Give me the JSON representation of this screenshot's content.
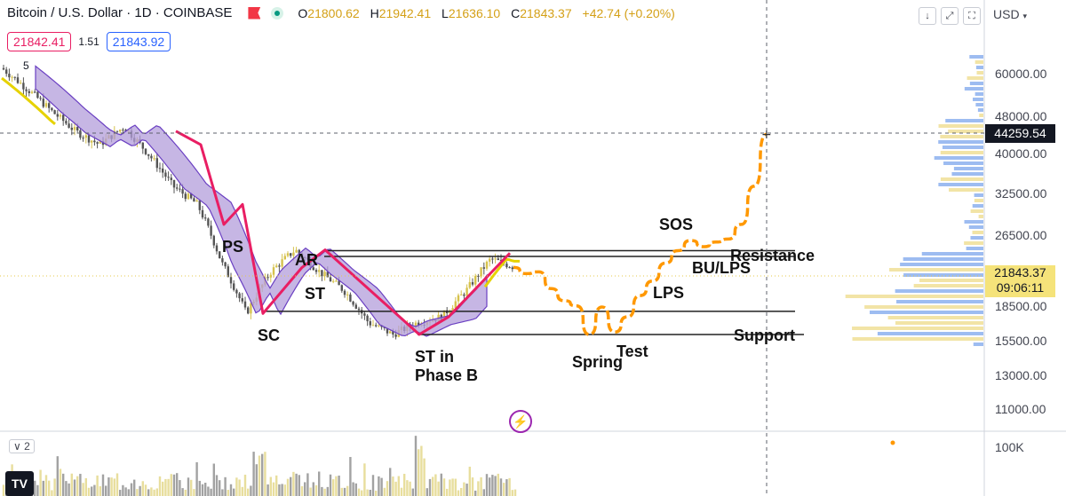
{
  "header": {
    "symbol": "Bitcoin / U.S. Dollar · 1D · COINBASE",
    "ohlc": [
      {
        "k": "O",
        "v": "21800.62"
      },
      {
        "k": "H",
        "v": "21942.41"
      },
      {
        "k": "L",
        "v": "21636.10"
      },
      {
        "k": "C",
        "v": "21843.37"
      }
    ],
    "change": "+42.74 (+0.20%)",
    "bid": "21842.41",
    "spread": "1.51",
    "ask": "21843.92",
    "currency": "USD",
    "indicator_count": "5"
  },
  "toolbar": {
    "down_icon": "↓",
    "expand_icon": "⤢",
    "fullscreen_icon": "⛶"
  },
  "price_axis": {
    "ticks": [
      "60000.00",
      "48000.00",
      "40000.00",
      "32500.00",
      "26500.00",
      "18500.00",
      "15500.00",
      "13000.00",
      "11000.00"
    ],
    "crosshair_price": "44259.54",
    "last_price": "21843.37",
    "countdown": "09:06:11"
  },
  "volume_pane": {
    "label": "2",
    "axis_tick": "100K"
  },
  "chart_data": {
    "type": "line",
    "wyckoff_labels": [
      "PS",
      "SC",
      "AR",
      "ST",
      "ST in Phase B",
      "Spring",
      "Test",
      "LPS",
      "SOS",
      "BU/LPS",
      "Resistance",
      "Support"
    ],
    "levels": {
      "resistance": [
        24500,
        23800
      ],
      "support": [
        18000,
        16000
      ]
    },
    "price_history": [
      62000,
      56000,
      50000,
      45000,
      42000,
      46000,
      40000,
      34000,
      31000,
      23000,
      17800,
      22000,
      24600,
      22000,
      20000,
      17000,
      16000,
      17000,
      17500,
      20000,
      23500,
      22500
    ],
    "projection": [
      22500,
      21800,
      22000,
      20200,
      19000,
      18500,
      16000,
      18400,
      16200,
      17500,
      19500,
      21000,
      23000,
      24500,
      25800,
      25000,
      25600,
      26000,
      28000,
      34000,
      44260
    ],
    "colors": {
      "wyckoff_path": "#e91e63",
      "projection": "#ff9800",
      "ribbon": "#7e57c2",
      "short_ma": "#e6d200",
      "levels": "#222222",
      "up_candle": "#d6c24d",
      "down_candle": "#555555"
    }
  }
}
